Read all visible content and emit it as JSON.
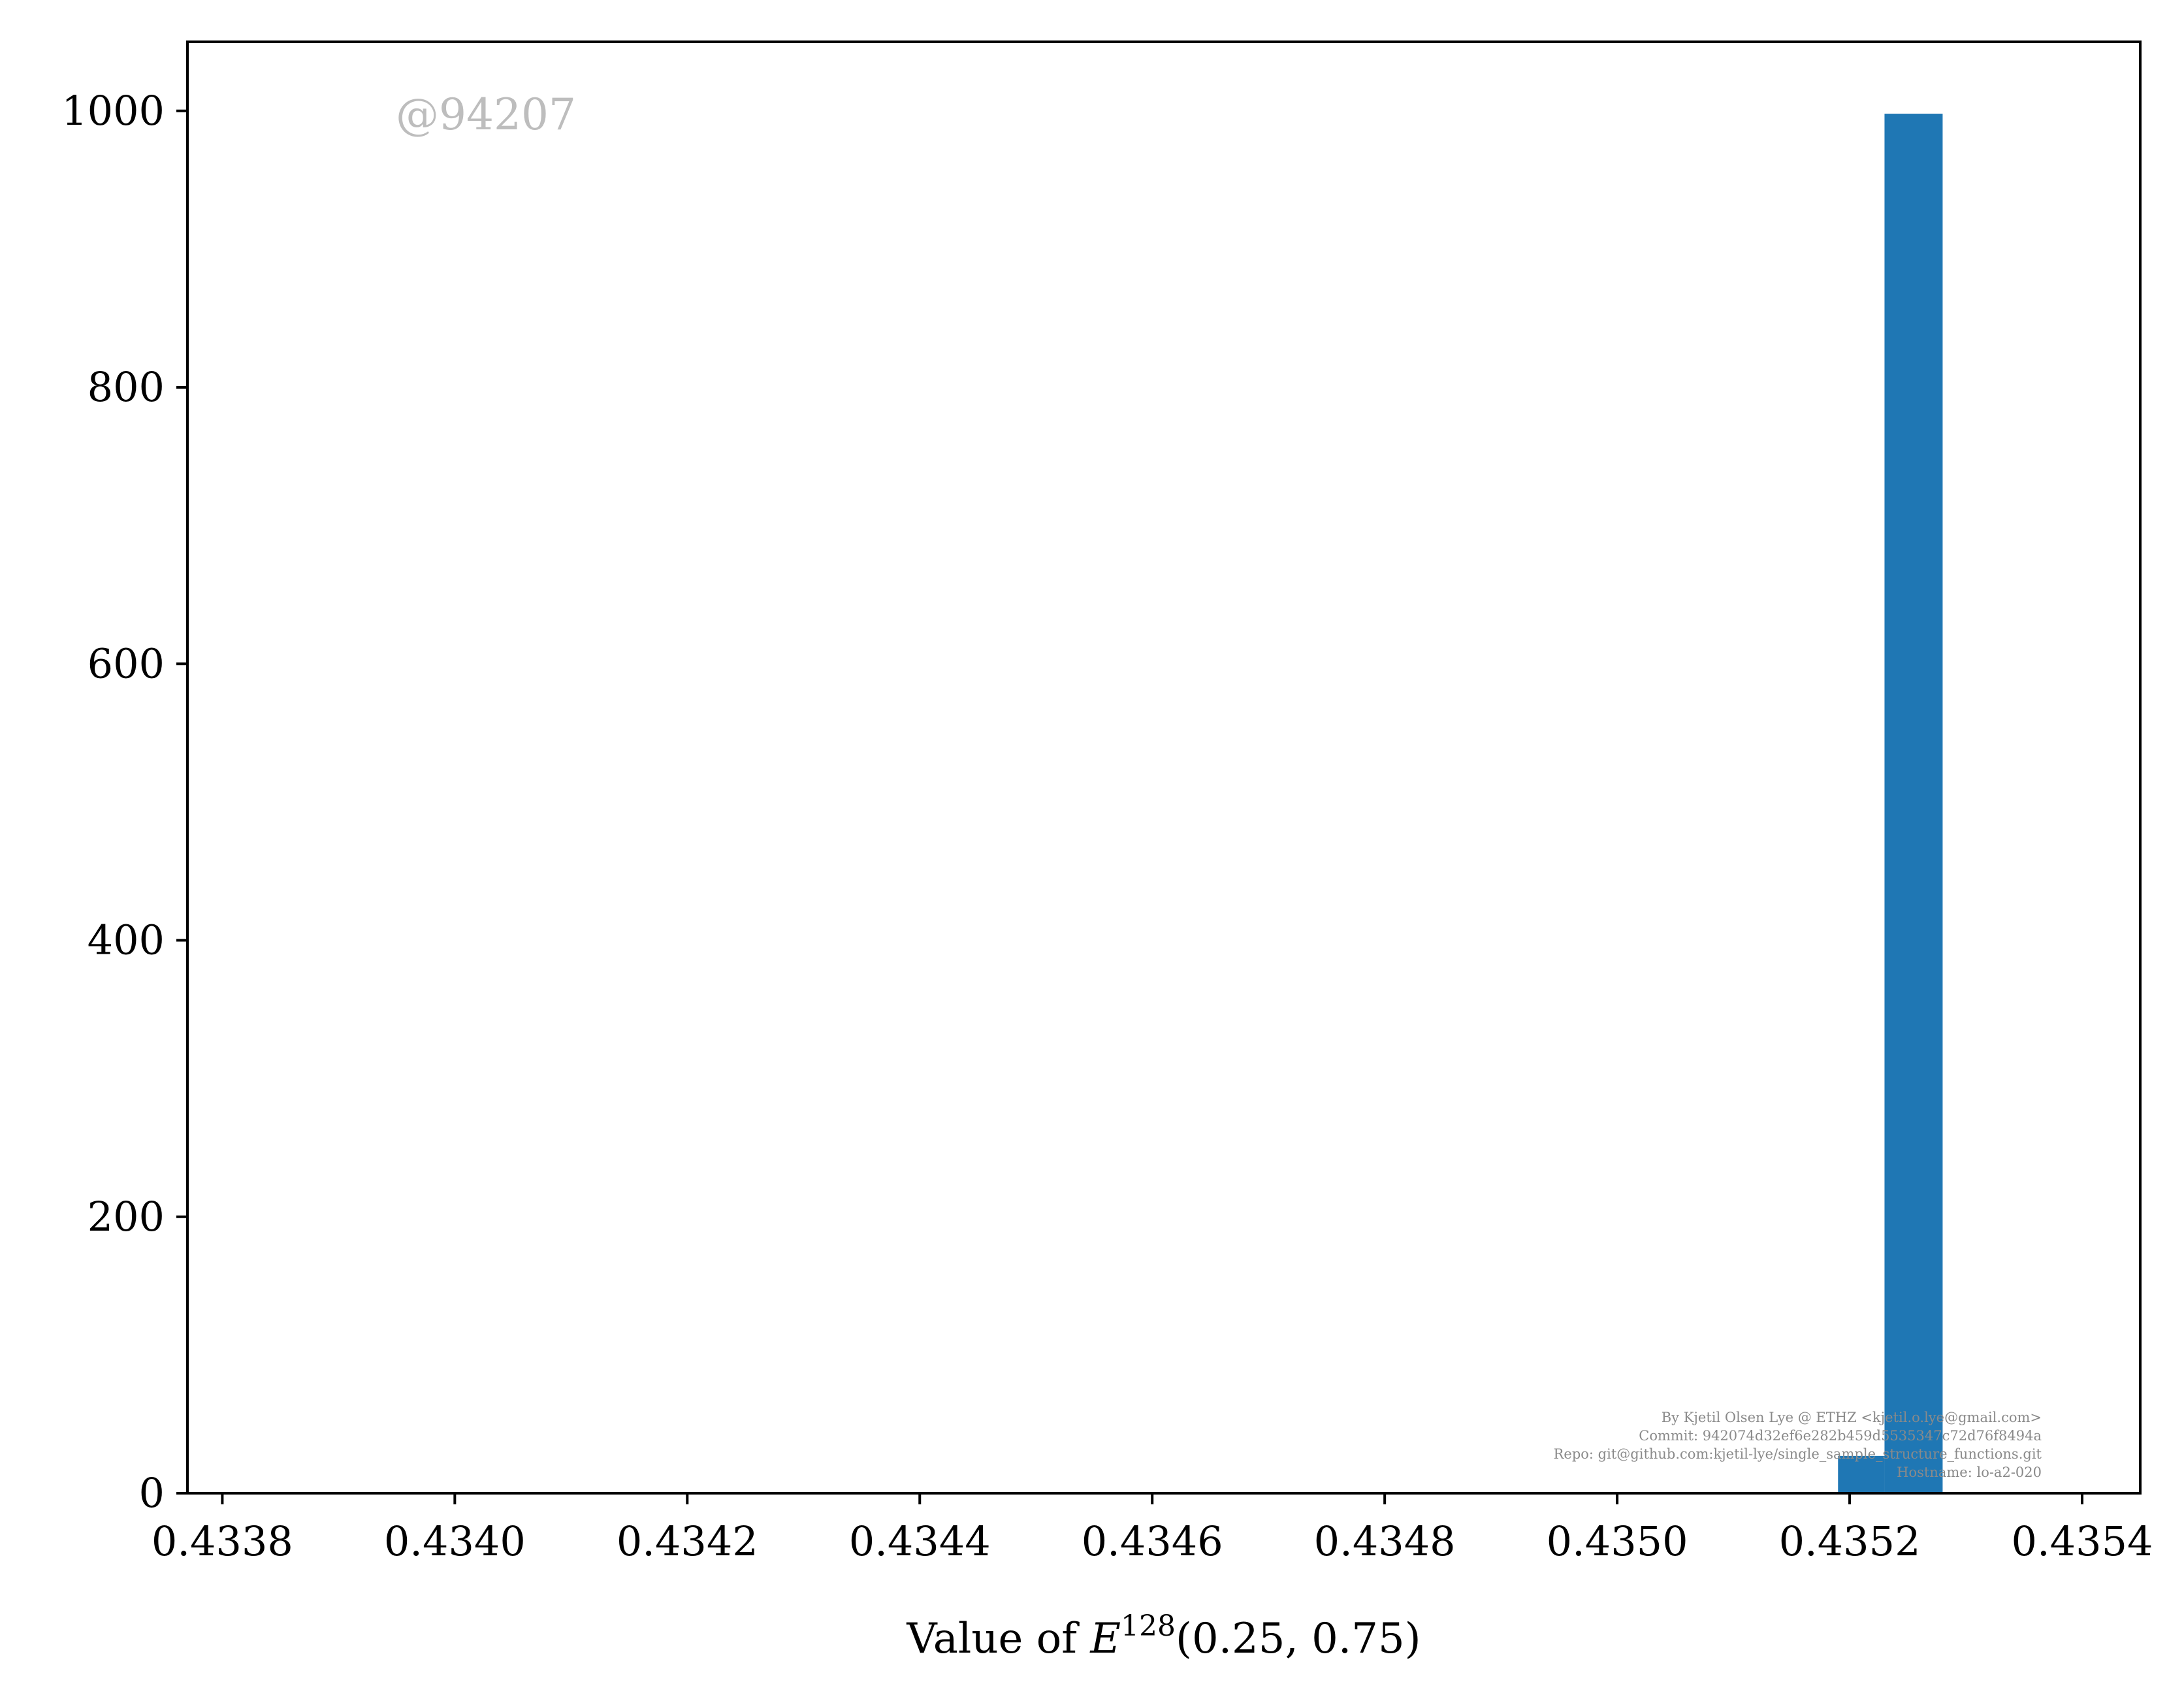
{
  "chart_data": {
    "type": "bar",
    "xlabel_prefix": "Value of ",
    "xlabel_var": "E",
    "xlabel_sup": "128",
    "xlabel_args": "(0.25, 0.75)",
    "ylabel": "",
    "xlim": [
      0.43377,
      0.43545
    ],
    "ylim": [
      0,
      1050
    ],
    "xticks": [
      0.4338,
      0.434,
      0.4342,
      0.4344,
      0.4346,
      0.4348,
      0.435,
      0.4352,
      0.4354
    ],
    "xtick_labels": [
      "0.4338",
      "0.4340",
      "0.4342",
      "0.4344",
      "0.4346",
      "0.4348",
      "0.4350",
      "0.4352",
      "0.4354"
    ],
    "yticks": [
      0,
      200,
      400,
      600,
      800,
      1000
    ],
    "ytick_labels": [
      "0",
      "200",
      "400",
      "600",
      "800",
      "1000"
    ],
    "bins": [
      {
        "x0": 0.43519,
        "x1": 0.43523,
        "count": 27
      },
      {
        "x0": 0.43523,
        "x1": 0.43528,
        "count": 998
      }
    ],
    "bar_color": "#1f77b4",
    "grid": false
  },
  "watermark": "@94207",
  "credits": [
    "By Kjetil Olsen Lye @ ETHZ <kjetil.o.lye@gmail.com>",
    "Commit: 942074d32ef6e282b459d5535347c72d76f8494a",
    "Repo: git@github.com:kjetil-lye/single_sample_structure_functions.git",
    "Hostname: lo-a2-020"
  ]
}
